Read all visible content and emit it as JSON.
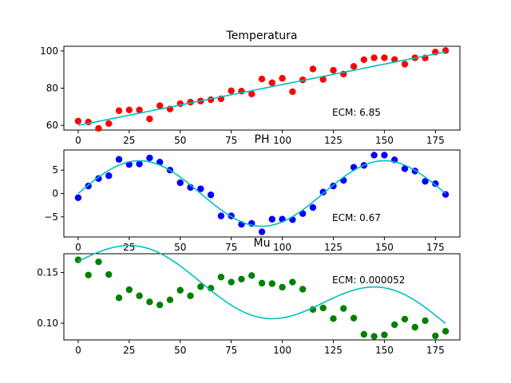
{
  "chart_data": [
    {
      "type": "scatter",
      "title": "Temperatura",
      "annotation": "ECM: 6.85",
      "xlim": [
        -7,
        187
      ],
      "ylim": [
        57.5,
        102.5
      ],
      "xticks": [
        0,
        25,
        50,
        75,
        100,
        125,
        150,
        175
      ],
      "yticks": [
        60,
        80,
        100
      ],
      "ytick_labels": [
        "60",
        "80",
        "100"
      ],
      "point_color": "#ff0000",
      "fit_color": "#00bfbf",
      "x": [
        0,
        5,
        10,
        15,
        20,
        25,
        30,
        35,
        40,
        45,
        50,
        55,
        60,
        65,
        70,
        75,
        80,
        85,
        90,
        95,
        100,
        105,
        110,
        115,
        120,
        125,
        130,
        135,
        140,
        145,
        150,
        155,
        160,
        165,
        170,
        175,
        180
      ],
      "y": [
        62.3,
        61.8,
        58.4,
        61.0,
        67.9,
        68.3,
        68.3,
        63.5,
        70.6,
        68.8,
        71.7,
        72.5,
        73.1,
        73.8,
        74.3,
        78.6,
        78.4,
        76.9,
        84.9,
        82.9,
        85.3,
        78.1,
        84.5,
        90.3,
        84.7,
        89.6,
        87.6,
        91.7,
        95.3,
        96.3,
        96.3,
        95.4,
        92.9,
        96.3,
        96.2,
        99.4,
        100.2
      ],
      "fit": {
        "kind": "linear",
        "x": [
          0,
          180
        ],
        "y": [
          60.0,
          99.5
        ]
      }
    },
    {
      "type": "scatter",
      "title": "PH",
      "annotation": "ECM: 0.67",
      "xlim": [
        -7,
        187
      ],
      "ylim": [
        -9.3,
        9.3
      ],
      "xticks": [
        0,
        25,
        50,
        75,
        100,
        125,
        150,
        175
      ],
      "yticks": [
        -5,
        0,
        5
      ],
      "ytick_labels": [
        "−5",
        "0",
        "5"
      ],
      "point_color": "#0000ff",
      "fit_color": "#00bfbf",
      "x": [
        0,
        5,
        10,
        15,
        20,
        25,
        30,
        35,
        40,
        45,
        50,
        55,
        60,
        65,
        70,
        75,
        80,
        85,
        90,
        95,
        100,
        105,
        110,
        115,
        120,
        125,
        130,
        135,
        140,
        145,
        150,
        155,
        160,
        165,
        170,
        175,
        180
      ],
      "y": [
        -0.9,
        1.6,
        3.2,
        3.8,
        7.3,
        6.2,
        6.3,
        7.6,
        6.7,
        5.0,
        2.3,
        1.3,
        1.0,
        -0.3,
        -4.8,
        -4.8,
        -6.6,
        -6.4,
        -8.2,
        -5.5,
        -5.5,
        -5.6,
        -4.3,
        -3.0,
        0.3,
        1.6,
        2.8,
        5.6,
        6.0,
        8.2,
        8.2,
        7.2,
        5.3,
        4.8,
        2.6,
        2.1,
        -0.2
      ],
      "fit": {
        "kind": "sine",
        "amplitude": 7.0,
        "period": 120,
        "phase_deg": 0,
        "offset": 0
      }
    },
    {
      "type": "scatter",
      "title": "Mu",
      "annotation": "ECM: 0.000052",
      "xlim": [
        -7,
        187
      ],
      "ylim": [
        0.0835,
        0.1685
      ],
      "xticks": [
        0,
        25,
        50,
        75,
        100,
        125,
        150,
        175
      ],
      "yticks": [
        0.1,
        0.15
      ],
      "ytick_labels": [
        "0.10",
        "0.15"
      ],
      "point_color": "#008000",
      "fit_color": "#00bfbf",
      "x": [
        0,
        5,
        10,
        15,
        20,
        25,
        30,
        35,
        40,
        45,
        50,
        55,
        60,
        65,
        70,
        75,
        80,
        85,
        90,
        95,
        100,
        105,
        110,
        115,
        120,
        125,
        130,
        135,
        140,
        145,
        150,
        155,
        160,
        165,
        170,
        175,
        180
      ],
      "y": [
        0.1625,
        0.1475,
        0.1605,
        0.148,
        0.125,
        0.133,
        0.127,
        0.121,
        0.118,
        0.123,
        0.1325,
        0.127,
        0.136,
        0.1345,
        0.1455,
        0.1405,
        0.1435,
        0.147,
        0.1395,
        0.139,
        0.1355,
        0.1405,
        0.1335,
        0.1135,
        0.115,
        0.1045,
        0.1145,
        0.105,
        0.089,
        0.087,
        0.0885,
        0.0985,
        0.104,
        0.096,
        0.1025,
        0.0875,
        0.092
      ],
      "fit": {
        "kind": "linear+sine",
        "intercept": 0.161,
        "slope": -0.000341,
        "amplitude": 0.025,
        "period": 120,
        "phase_deg": 0
      }
    }
  ]
}
